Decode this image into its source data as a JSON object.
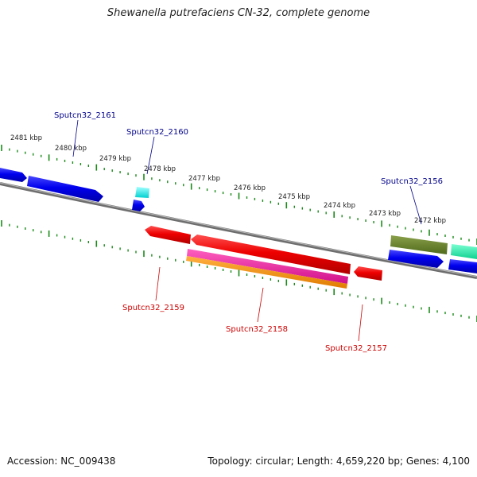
{
  "title": "Shewanella putrefaciens CN-32, complete genome",
  "footer": {
    "accession": "Accession: NC_009438",
    "stats": "Topology: circular; Length: 4,659,220 bp; Genes: 4,100"
  },
  "colors": {
    "backbone": "#808080",
    "tick": "#1a8a1a",
    "forward_label": "#00008b",
    "reverse_label": "#cc0000"
  },
  "scale_labels": [
    "2481 kbp",
    "2480 kbp",
    "2479 kbp",
    "2478 kbp",
    "2477 kbp",
    "2476 kbp",
    "2475 kbp",
    "2474 kbp",
    "2473 kbp",
    "2472 kbp"
  ],
  "gene_labels": [
    {
      "text": "Sputcn32_2161",
      "strand": "forward"
    },
    {
      "text": "Sputcn32_2160",
      "strand": "forward"
    },
    {
      "text": "Sputcn32_2156",
      "strand": "forward"
    },
    {
      "text": "Sputcn32_2159",
      "strand": "reverse"
    },
    {
      "text": "Sputcn32_2158",
      "strand": "reverse"
    },
    {
      "text": "Sputcn32_2157",
      "strand": "reverse"
    }
  ]
}
